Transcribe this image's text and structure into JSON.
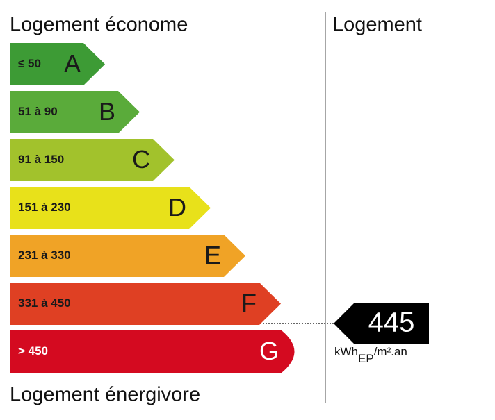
{
  "header": {
    "economical": "Logement économe",
    "dwelling": "Logement",
    "energy_intensive": "Logement énergivore"
  },
  "classes": [
    {
      "range": "≤ 50",
      "letter": "A",
      "color": "#3d9b35"
    },
    {
      "range": "51 à 90",
      "letter": "B",
      "color": "#5aab3a"
    },
    {
      "range": "91 à 150",
      "letter": "C",
      "color": "#a2c22c"
    },
    {
      "range": "151 à 230",
      "letter": "D",
      "color": "#e8e11a"
    },
    {
      "range": "231 à 330",
      "letter": "E",
      "color": "#f0a326"
    },
    {
      "range": "331 à 450",
      "letter": "F",
      "color": "#df4023"
    },
    {
      "range": "> 450",
      "letter": "G",
      "color": "#d40a20"
    }
  ],
  "consumption": {
    "value": 445,
    "unit": "kWh",
    "unit_sub": "EP",
    "unit_rest": "/m².an"
  }
}
